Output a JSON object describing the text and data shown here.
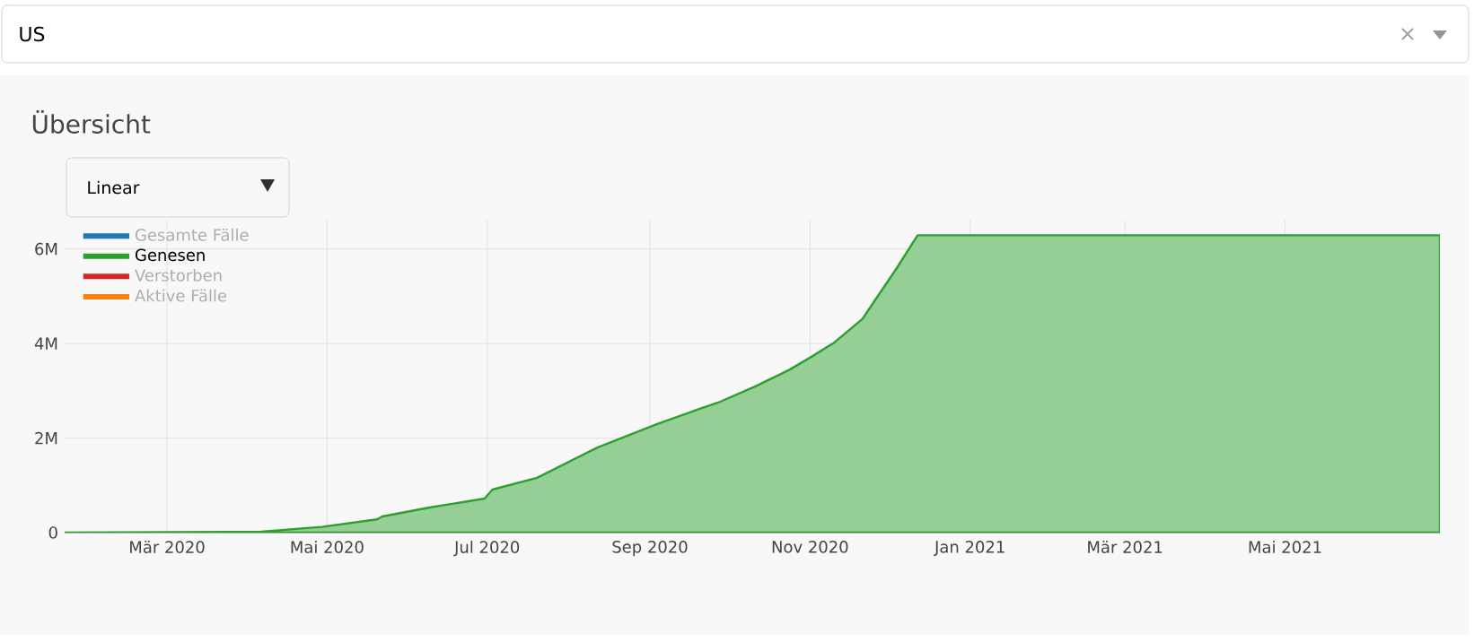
{
  "chart_data": {
    "type": "area",
    "title": "Übersicht",
    "annotations": [
      "US",
      "Linear"
    ],
    "x": [
      "2020-01-22",
      "2020-04-06",
      "2020-04-29",
      "2020-05-20",
      "2020-05-22",
      "2020-06-09",
      "2020-06-30",
      "2020-07-03",
      "2020-07-20",
      "2020-08-12",
      "2020-09-04",
      "2020-09-20",
      "2020-09-27",
      "2020-10-11",
      "2020-10-24",
      "2020-11-01",
      "2020-11-10",
      "2020-11-21",
      "2020-11-24",
      "2020-12-04",
      "2020-12-12",
      "2021-06-29"
    ],
    "series": [
      {
        "name": "Gesamte Fälle",
        "color": "#1f77b4",
        "values": [
          null,
          null,
          null,
          null,
          null,
          null,
          null,
          null,
          null,
          null,
          null,
          null,
          null,
          null,
          null,
          null,
          null,
          null,
          null,
          null,
          null,
          null
        ]
      },
      {
        "name": "Genesen",
        "color": "#2ca02c",
        "values": [
          0,
          20000,
          120000,
          280000,
          340000,
          530000,
          720000,
          910000,
          1160000,
          1800000,
          2300000,
          2620000,
          2750000,
          3090000,
          3440000,
          3700000,
          4010000,
          4520000,
          4770000,
          5590000,
          6290000,
          6290000
        ]
      },
      {
        "name": "Verstorben",
        "color": "#d62728",
        "values": [
          null,
          null,
          null,
          null,
          null,
          null,
          null,
          null,
          null,
          null,
          null,
          null,
          null,
          null,
          null,
          null,
          null,
          null,
          null,
          null,
          null,
          null
        ]
      },
      {
        "name": "Aktive Fälle",
        "color": "#ff7f0e",
        "values": [
          null,
          null,
          null,
          null,
          null,
          null,
          null,
          null,
          null,
          null,
          null,
          null,
          null,
          null,
          null,
          null,
          null,
          null,
          null,
          null,
          null,
          null
        ]
      }
    ],
    "xlim": [
      "2020-01-22",
      "2021-06-29"
    ],
    "xticks": [
      {
        "value": "2020-03-01",
        "label": "Mär 2020"
      },
      {
        "value": "2020-05-01",
        "label": "Mai 2020"
      },
      {
        "value": "2020-07-01",
        "label": "Jul 2020"
      },
      {
        "value": "2020-09-01",
        "label": "Sep 2020"
      },
      {
        "value": "2020-11-01",
        "label": "Nov 2020"
      },
      {
        "value": "2021-01-01",
        "label": "Jan 2021"
      },
      {
        "value": "2021-03-01",
        "label": "Mär 2021"
      },
      {
        "value": "2021-05-01",
        "label": "Mai 2021"
      }
    ],
    "ylim": [
      0,
      6600000
    ],
    "yticks": [
      0,
      {
        "value": 2000000,
        "label": "2M"
      },
      {
        "value": 4000000,
        "label": "4M"
      },
      {
        "value": 6000000,
        "label": "6M"
      }
    ],
    "grid": true,
    "legend": "top left"
  }
}
